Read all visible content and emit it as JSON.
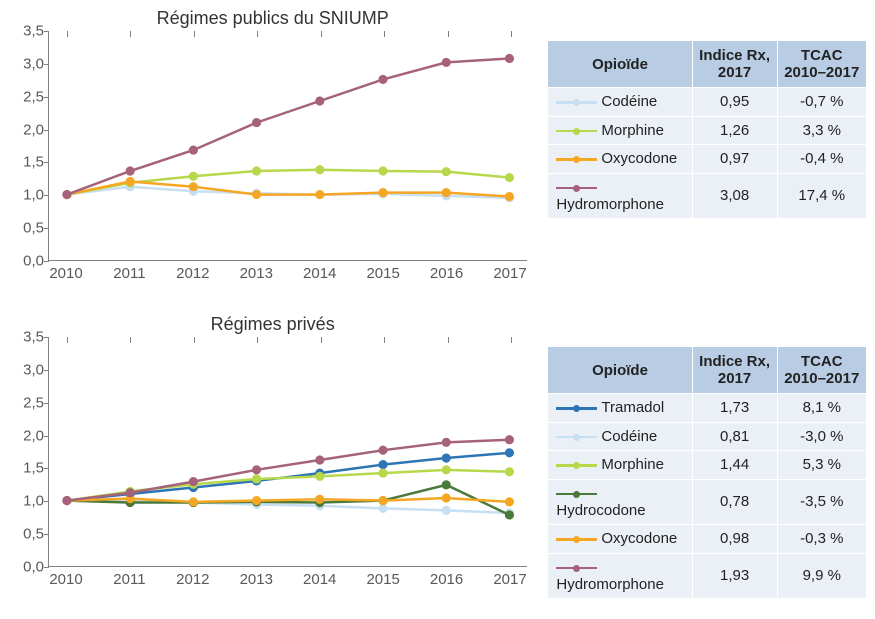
{
  "colors": {
    "background": "#ffffff",
    "axis": "#808080",
    "tick_text": "#595959",
    "table_header_bg": "#b8cce4",
    "table_row_bg": "#ebf0f7",
    "table_border": "#ffffff"
  },
  "x_categories": [
    "2010",
    "2011",
    "2012",
    "2013",
    "2014",
    "2015",
    "2016",
    "2017"
  ],
  "panels": [
    {
      "id": "public",
      "title": "Régimes publics du SNIUMP",
      "ylim": [
        0.0,
        3.5
      ],
      "ytick_step": 0.5,
      "series": [
        {
          "name": "Codéine",
          "color": "#c7dff2",
          "points": [
            1.0,
            1.12,
            1.05,
            1.02,
            1.0,
            1.01,
            0.98,
            0.95
          ]
        },
        {
          "name": "Morphine",
          "color": "#b6d84a",
          "points": [
            1.0,
            1.18,
            1.28,
            1.36,
            1.38,
            1.36,
            1.35,
            1.26
          ]
        },
        {
          "name": "Oxycodone",
          "color": "#f5a623",
          "points": [
            1.0,
            1.2,
            1.12,
            1.0,
            1.0,
            1.03,
            1.03,
            0.97
          ]
        },
        {
          "name": "Hydromorphone",
          "color": "#a5627a",
          "points": [
            1.0,
            1.36,
            1.68,
            2.1,
            2.43,
            2.76,
            3.02,
            3.08
          ]
        }
      ],
      "table": {
        "columns": [
          "Opioïde",
          "Indice Rx, 2017",
          "TCAC 2010–2017"
        ],
        "rows": [
          {
            "name": "Codéine",
            "color": "#c7dff2",
            "idx": "0,95",
            "cagr": "-0,7 %"
          },
          {
            "name": "Morphine",
            "color": "#b6d84a",
            "idx": "1,26",
            "cagr": "3,3 %"
          },
          {
            "name": "Oxycodone",
            "color": "#f5a623",
            "idx": "0,97",
            "cagr": "-0,4 %"
          },
          {
            "name": "Hydromorphone",
            "color": "#a5627a",
            "idx": "3,08",
            "cagr": "17,4 %"
          }
        ]
      }
    },
    {
      "id": "private",
      "title": "Régimes privés",
      "ylim": [
        0.0,
        3.5
      ],
      "ytick_step": 0.5,
      "series": [
        {
          "name": "Tramadol",
          "color": "#2e75b6",
          "points": [
            1.0,
            1.1,
            1.2,
            1.3,
            1.42,
            1.55,
            1.65,
            1.73
          ]
        },
        {
          "name": "Codéine",
          "color": "#c7dff2",
          "points": [
            1.0,
            1.0,
            0.97,
            0.94,
            0.92,
            0.88,
            0.85,
            0.81
          ]
        },
        {
          "name": "Morphine",
          "color": "#b6d84a",
          "points": [
            1.0,
            1.14,
            1.25,
            1.33,
            1.37,
            1.42,
            1.47,
            1.44
          ]
        },
        {
          "name": "Hydrocodone",
          "color": "#4a7a3a",
          "points": [
            1.0,
            0.97,
            0.97,
            0.98,
            0.97,
            1.0,
            1.24,
            0.78
          ]
        },
        {
          "name": "Oxycodone",
          "color": "#f5a623",
          "points": [
            1.0,
            1.03,
            0.98,
            1.0,
            1.02,
            1.0,
            1.04,
            0.98
          ]
        },
        {
          "name": "Hydromorphone",
          "color": "#a5627a",
          "points": [
            1.0,
            1.12,
            1.29,
            1.47,
            1.62,
            1.77,
            1.89,
            1.93
          ]
        }
      ],
      "table": {
        "columns": [
          "Opioïde",
          "Indice Rx, 2017",
          "TCAC 2010–2017"
        ],
        "rows": [
          {
            "name": "Tramadol",
            "color": "#2e75b6",
            "idx": "1,73",
            "cagr": "8,1 %"
          },
          {
            "name": "Codéine",
            "color": "#c7dff2",
            "idx": "0,81",
            "cagr": "-3,0 %"
          },
          {
            "name": "Morphine",
            "color": "#b6d84a",
            "idx": "1,44",
            "cagr": "5,3 %"
          },
          {
            "name": "Hydrocodone",
            "color": "#4a7a3a",
            "idx": "0,78",
            "cagr": "-3,5 %"
          },
          {
            "name": "Oxycodone",
            "color": "#f5a623",
            "idx": "0,98",
            "cagr": "-0,3 %"
          },
          {
            "name": "Hydromorphone",
            "color": "#a5627a",
            "idx": "1,93",
            "cagr": "9,9 %"
          }
        ]
      }
    }
  ],
  "chart_style": {
    "line_width": 2.5,
    "marker_radius": 4,
    "title_fontsize": 18,
    "tick_fontsize": 15,
    "decimal_comma": true
  }
}
